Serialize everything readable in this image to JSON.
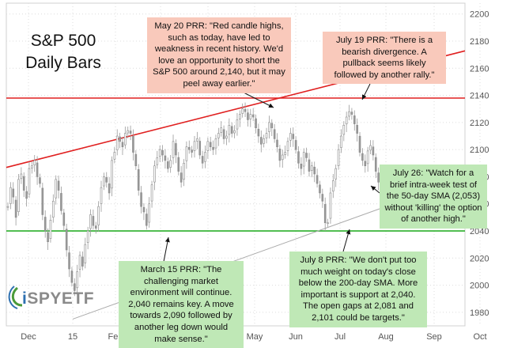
{
  "chart_data": {
    "type": "candlestick",
    "title": "S&P 500",
    "subtitle": "Daily Bars",
    "x_ticks": [
      "Dec",
      "15",
      "Feb",
      "Mar",
      "Apr",
      "May",
      "Jun",
      "Jul",
      "Aug",
      "Sep",
      "Oct"
    ],
    "y_ticks": [
      1980,
      2000,
      2020,
      2040,
      2060,
      2080,
      2100,
      2120,
      2140,
      2160,
      2180,
      2200
    ],
    "ylim": [
      1970,
      2208
    ],
    "y_axis_position": "right",
    "grid": "dotted",
    "horizontal_lines": [
      {
        "value": 2138,
        "color": "#e02020"
      },
      {
        "value": 2040,
        "color": "#18a818"
      }
    ],
    "trendlines": [
      {
        "from": [
          "Dec",
          2091
        ],
        "to": [
          "Aug",
          2158
        ],
        "color": "#e02020"
      },
      {
        "from": [
          "15",
          1975
        ],
        "to": [
          "Aug",
          2058
        ],
        "color": "#aaaaaa"
      }
    ],
    "sma_50_day": 2053,
    "key_levels": [
      2040,
      2081,
      2101,
      2140
    ],
    "series": [
      {
        "name": "",
        "values": [
          2058,
          2072,
          2065,
          2050,
          2078,
          2082,
          2070,
          2064,
          2086,
          2088,
          2092,
          2080,
          2075,
          2052,
          2040,
          2032,
          2048,
          2062,
          2078,
          2070,
          2055,
          2044,
          2026,
          2012,
          2002,
          1996,
          2010,
          2022,
          2014,
          2030,
          2040,
          2052,
          2044,
          2042,
          2058,
          2072,
          2080,
          2076,
          2068,
          2092,
          2098,
          2110,
          2106,
          2102,
          2112,
          2114,
          2112,
          2098,
          2088,
          2070,
          2058,
          2054,
          2044,
          2060,
          2074,
          2088,
          2094,
          2100,
          2096,
          2092,
          2086,
          2092,
          2106,
          2096,
          2084,
          2076,
          2090,
          2102,
          2100,
          2098,
          2106,
          2108,
          2096,
          2090,
          2098,
          2106,
          2102,
          2100,
          2108,
          2112,
          2116,
          2108,
          2110,
          2118,
          2112,
          2114,
          2122,
          2126,
          2130,
          2128,
          2122,
          2126,
          2124,
          2116,
          2110,
          2104,
          2108,
          2112,
          2120,
          2116,
          2108,
          2102,
          2092,
          2096,
          2098,
          2106,
          2112,
          2108,
          2100,
          2090,
          2086,
          2098,
          2094,
          2084,
          2088,
          2082,
          2075,
          2068,
          2062,
          2046,
          2046,
          2068,
          2077,
          2086,
          2100,
          2110,
          2118,
          2124,
          2128,
          2126,
          2119,
          2112,
          2098,
          2092,
          2088,
          2099,
          2103,
          2096,
          2084,
          2076,
          2072
        ]
      }
    ]
  },
  "annotations": {
    "may20": "May 20 PRR: \"Red candle highs, such as today, have led to weakness in recent history. We'd love an opportunity to short the S&P 500 around 2,140, but it may peel away earlier.\"",
    "jul19": "July 19 PRR: \"There is a bearish divergence. A pullback seems likely followed by another rally.\"",
    "jul26": "July 26: \"Watch for a brief intra-week test of the 50-day SMA (2,053) without 'killing' the option of another high.\"",
    "mar15": "March 15 PRR: \"The challenging market environment will continue. 2,040 remains key. A move towards 2,090 followed by another leg down would make sense.\"",
    "jul8": "July 8 PRR: \"We don't put too much weight on today's close below the 200-day SMA. More important is support at 2,040. The open gaps at 2,081 and 2,101 could be targets.\""
  },
  "logo": {
    "text": "SPYETF",
    "prefix": "i"
  },
  "colors": {
    "pink_box": "#f9c9bb",
    "green_box": "#bfe8b6",
    "resistance": "#e02020",
    "support": "#18a818"
  }
}
